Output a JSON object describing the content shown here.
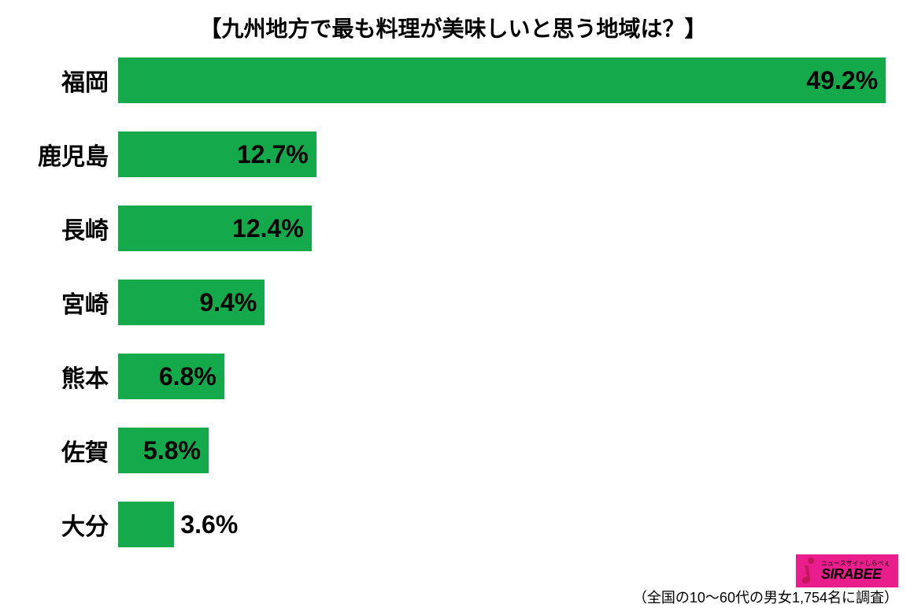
{
  "chart": {
    "type": "bar-horizontal",
    "title": "【九州地方で最も料理が美味しいと思う地域は？】",
    "title_fontsize": 28,
    "background_color": "#ffffff",
    "bar_color": "#14aa4b",
    "label_fontsize": 30,
    "value_fontsize": 32,
    "text_color": "#000000",
    "max_value": 50,
    "bars": [
      {
        "label": "福岡",
        "value": 49.2,
        "display": "49.2%",
        "value_outside": false
      },
      {
        "label": "鹿児島",
        "value": 12.7,
        "display": "12.7%",
        "value_outside": false
      },
      {
        "label": "長崎",
        "value": 12.4,
        "display": "12.4%",
        "value_outside": false
      },
      {
        "label": "宮崎",
        "value": 9.4,
        "display": "9.4%",
        "value_outside": false
      },
      {
        "label": "熊本",
        "value": 6.8,
        "display": "6.8%",
        "value_outside": false
      },
      {
        "label": "佐賀",
        "value": 5.8,
        "display": "5.8%",
        "value_outside": false
      },
      {
        "label": "大分",
        "value": 3.6,
        "display": "3.6%",
        "value_outside": true
      }
    ]
  },
  "logo": {
    "background_color": "#e91e8c",
    "small_text": "ニュースサイトしらべぇ",
    "main_text": "SIRABEE",
    "icon_color": "#d81b60"
  },
  "footer": {
    "note": "（全国の10〜60代の男女1,754名に調査）"
  }
}
